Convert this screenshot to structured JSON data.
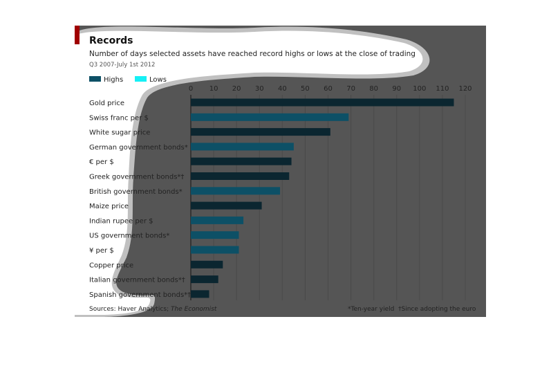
{
  "colors": {
    "panel_bg": "#555555",
    "overlay": "#ffffff",
    "overlay_edge": "#c0c0c0",
    "grid": "#4a4a4a",
    "axis": "#2a2a2a",
    "highs": "#0d5066",
    "lows": "#16f0f5",
    "dark_bar": "#0b2630",
    "brand_red": "#a00000",
    "text": "#222222"
  },
  "chart_data": {
    "type": "bar",
    "orientation": "horizontal",
    "title": "Records",
    "subtitle": "Number of days selected assets have reached record highs or lows at the close of trading",
    "period": "Q3 2007-July 1st 2012",
    "legend": [
      "Highs",
      "Lows"
    ],
    "legend_placement": "top-left",
    "xlim": [
      0,
      120
    ],
    "xticks": [
      0,
      10,
      20,
      30,
      40,
      50,
      60,
      70,
      80,
      90,
      100,
      110,
      120
    ],
    "grid": true,
    "categories": [
      "Gold price",
      "Swiss franc per $",
      "White sugar price",
      "German government bonds*",
      "€ per $",
      "Greek government bonds*†",
      "British government bonds*",
      "Maize price",
      "Indian rupee per $",
      "US government bonds*",
      "¥ per $",
      "Copper price",
      "Italian government bonds*†",
      "Spanish government bonds*†"
    ],
    "values": [
      115,
      69,
      61,
      45,
      44,
      43,
      39,
      31,
      23,
      21,
      21,
      14,
      12,
      8
    ],
    "bar_style": [
      "dark",
      "blue",
      "dark",
      "blue",
      "dark",
      "dark",
      "blue",
      "dark",
      "blue",
      "blue",
      "blue",
      "dark",
      "dark",
      "dark"
    ],
    "source": "Sources: Haver Analytics; ",
    "source_italic": "The Economist",
    "footnote1": "*Ten-year yield",
    "footnote2": "†Since adopting the euro"
  }
}
